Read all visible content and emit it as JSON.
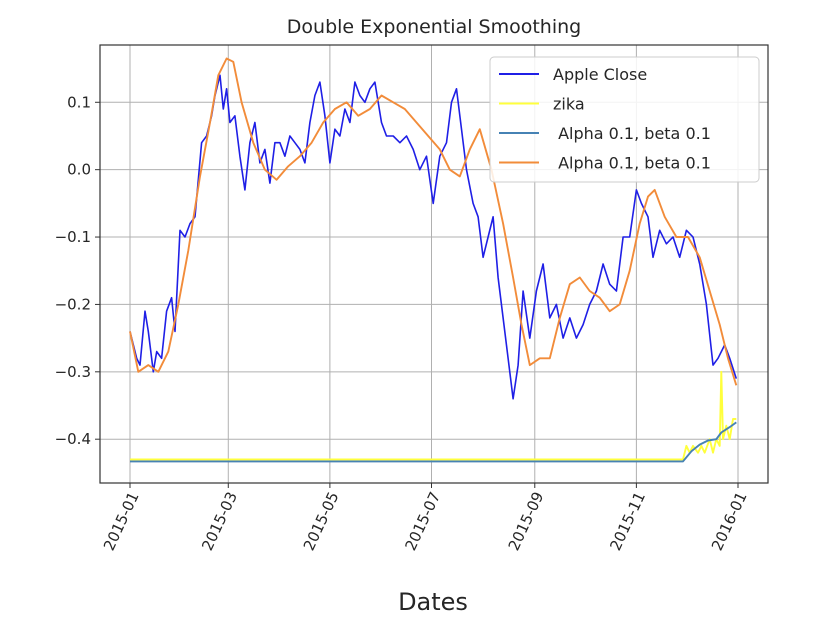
{
  "chart_data": {
    "type": "line",
    "title": "Double Exponential Smoothing",
    "xlabel": "Dates",
    "ylabel": "",
    "x_axis": {
      "kind": "date",
      "range": [
        "2015-01-01",
        "2016-01-01"
      ],
      "ticks": [
        "2015-01",
        "2015-03",
        "2015-05",
        "2015-07",
        "2015-09",
        "2015-11",
        "2016-01"
      ],
      "tick_rotation": -65
    },
    "y_axis": {
      "range": [
        -0.465,
        0.185
      ],
      "ticks": [
        0.1,
        0.0,
        -0.1,
        -0.2,
        -0.3,
        -0.4
      ],
      "tick_labels": [
        "0.1",
        "0.0",
        "−0.1",
        "−0.2",
        "−0.3",
        "−0.4"
      ]
    },
    "grid": true,
    "legend_position": "top-right",
    "series": [
      {
        "name": "Apple Close",
        "color": "#1f1fe6",
        "x": [
          "2015-01-01",
          "2015-01-05",
          "2015-01-07",
          "2015-01-10",
          "2015-01-12",
          "2015-01-15",
          "2015-01-17",
          "2015-01-20",
          "2015-01-23",
          "2015-01-26",
          "2015-01-28",
          "2015-01-31",
          "2015-02-03",
          "2015-02-06",
          "2015-02-09",
          "2015-02-13",
          "2015-02-16",
          "2015-02-19",
          "2015-02-21",
          "2015-02-24",
          "2015-02-26",
          "2015-02-28",
          "2015-03-02",
          "2015-03-05",
          "2015-03-08",
          "2015-03-11",
          "2015-03-14",
          "2015-03-17",
          "2015-03-20",
          "2015-03-23",
          "2015-03-26",
          "2015-03-29",
          "2015-04-01",
          "2015-04-04",
          "2015-04-07",
          "2015-04-10",
          "2015-04-13",
          "2015-04-16",
          "2015-04-19",
          "2015-04-22",
          "2015-04-25",
          "2015-04-28",
          "2015-05-01",
          "2015-05-04",
          "2015-05-07",
          "2015-05-10",
          "2015-05-13",
          "2015-05-16",
          "2015-05-19",
          "2015-05-22",
          "2015-05-25",
          "2015-05-28",
          "2015-06-01",
          "2015-06-04",
          "2015-06-08",
          "2015-06-12",
          "2015-06-16",
          "2015-06-20",
          "2015-06-24",
          "2015-06-28",
          "2015-07-02",
          "2015-07-06",
          "2015-07-10",
          "2015-07-13",
          "2015-07-16",
          "2015-07-19",
          "2015-07-22",
          "2015-07-26",
          "2015-07-29",
          "2015-08-01",
          "2015-08-04",
          "2015-08-07",
          "2015-08-10",
          "2015-08-13",
          "2015-08-16",
          "2015-08-19",
          "2015-08-22",
          "2015-08-25",
          "2015-08-29",
          "2015-09-02",
          "2015-09-06",
          "2015-09-10",
          "2015-09-14",
          "2015-09-18",
          "2015-09-22",
          "2015-09-26",
          "2015-09-30",
          "2015-10-04",
          "2015-10-08",
          "2015-10-12",
          "2015-10-16",
          "2015-10-20",
          "2015-10-24",
          "2015-10-28",
          "2015-11-01",
          "2015-11-04",
          "2015-11-08",
          "2015-11-11",
          "2015-11-15",
          "2015-11-19",
          "2015-11-23",
          "2015-11-27",
          "2015-12-01",
          "2015-12-05",
          "2015-12-09",
          "2015-12-13",
          "2015-12-17",
          "2015-12-20",
          "2015-12-24",
          "2015-12-27",
          "2015-12-31"
        ],
        "y": [
          -0.24,
          -0.28,
          -0.29,
          -0.21,
          -0.24,
          -0.3,
          -0.27,
          -0.28,
          -0.21,
          -0.19,
          -0.24,
          -0.09,
          -0.1,
          -0.08,
          -0.07,
          0.04,
          0.05,
          0.08,
          0.11,
          0.14,
          0.09,
          0.12,
          0.07,
          0.08,
          0.02,
          -0.03,
          0.04,
          0.07,
          0.01,
          0.03,
          -0.02,
          0.04,
          0.04,
          0.02,
          0.05,
          0.04,
          0.03,
          0.01,
          0.07,
          0.11,
          0.13,
          0.08,
          0.01,
          0.06,
          0.05,
          0.09,
          0.07,
          0.13,
          0.11,
          0.1,
          0.12,
          0.13,
          0.07,
          0.05,
          0.05,
          0.04,
          0.05,
          0.03,
          0.0,
          0.02,
          -0.05,
          0.02,
          0.04,
          0.1,
          0.12,
          0.06,
          0.0,
          -0.05,
          -0.07,
          -0.13,
          -0.1,
          -0.07,
          -0.16,
          -0.22,
          -0.28,
          -0.34,
          -0.29,
          -0.18,
          -0.25,
          -0.18,
          -0.14,
          -0.22,
          -0.2,
          -0.25,
          -0.22,
          -0.25,
          -0.23,
          -0.2,
          -0.18,
          -0.14,
          -0.17,
          -0.18,
          -0.1,
          -0.1,
          -0.03,
          -0.05,
          -0.07,
          -0.13,
          -0.09,
          -0.11,
          -0.1,
          -0.13,
          -0.09,
          -0.1,
          -0.14,
          -0.2,
          -0.29,
          -0.28,
          -0.26,
          -0.28,
          -0.31
        ]
      },
      {
        "name": "zika",
        "color": "#ffff3c",
        "x": [
          "2015-01-01",
          "2015-11-29",
          "2015-12-01",
          "2015-12-03",
          "2015-12-05",
          "2015-12-08",
          "2015-12-10",
          "2015-12-12",
          "2015-12-15",
          "2015-12-17",
          "2015-12-19",
          "2015-12-21",
          "2015-12-22",
          "2015-12-23",
          "2015-12-25",
          "2015-12-27",
          "2015-12-29",
          "2015-12-31"
        ],
        "y": [
          -0.43,
          -0.43,
          -0.41,
          -0.42,
          -0.41,
          -0.42,
          -0.41,
          -0.42,
          -0.4,
          -0.42,
          -0.4,
          -0.41,
          -0.3,
          -0.4,
          -0.38,
          -0.4,
          -0.37,
          -0.37
        ]
      },
      {
        "name": " Alpha 0.1, beta 0.1",
        "color": "#4682b4",
        "x": [
          "2015-01-01",
          "2015-11-29",
          "2015-12-04",
          "2015-12-09",
          "2015-12-14",
          "2015-12-19",
          "2015-12-22",
          "2015-12-27",
          "2015-12-31"
        ],
        "y": [
          -0.433,
          -0.433,
          -0.418,
          -0.408,
          -0.402,
          -0.4,
          -0.39,
          -0.382,
          -0.375
        ]
      },
      {
        "name": " Alpha 0.1, beta 0.1",
        "color": "#f28c3a",
        "x": [
          "2015-01-01",
          "2015-01-06",
          "2015-01-12",
          "2015-01-18",
          "2015-01-24",
          "2015-01-30",
          "2015-02-05",
          "2015-02-12",
          "2015-02-18",
          "2015-02-23",
          "2015-02-28",
          "2015-03-04",
          "2015-03-09",
          "2015-03-16",
          "2015-03-23",
          "2015-03-30",
          "2015-04-06",
          "2015-04-13",
          "2015-04-20",
          "2015-04-27",
          "2015-05-04",
          "2015-05-11",
          "2015-05-18",
          "2015-05-25",
          "2015-06-01",
          "2015-06-08",
          "2015-06-15",
          "2015-06-22",
          "2015-06-29",
          "2015-07-06",
          "2015-07-12",
          "2015-07-18",
          "2015-07-24",
          "2015-07-30",
          "2015-08-06",
          "2015-08-13",
          "2015-08-19",
          "2015-08-24",
          "2015-08-29",
          "2015-09-04",
          "2015-09-10",
          "2015-09-16",
          "2015-09-22",
          "2015-09-28",
          "2015-10-04",
          "2015-10-10",
          "2015-10-16",
          "2015-10-22",
          "2015-10-28",
          "2015-11-03",
          "2015-11-08",
          "2015-11-12",
          "2015-11-18",
          "2015-11-25",
          "2015-12-02",
          "2015-12-09",
          "2015-12-15",
          "2015-12-21",
          "2015-12-26",
          "2015-12-31"
        ],
        "y": [
          -0.24,
          -0.3,
          -0.29,
          -0.3,
          -0.27,
          -0.2,
          -0.12,
          -0.01,
          0.07,
          0.14,
          0.165,
          0.16,
          0.1,
          0.04,
          0.0,
          -0.015,
          0.005,
          0.02,
          0.04,
          0.07,
          0.09,
          0.1,
          0.08,
          0.09,
          0.11,
          0.1,
          0.09,
          0.07,
          0.05,
          0.03,
          0.0,
          -0.01,
          0.03,
          0.06,
          0.0,
          -0.08,
          -0.16,
          -0.23,
          -0.29,
          -0.28,
          -0.28,
          -0.22,
          -0.17,
          -0.16,
          -0.18,
          -0.19,
          -0.21,
          -0.2,
          -0.15,
          -0.08,
          -0.04,
          -0.03,
          -0.07,
          -0.1,
          -0.1,
          -0.13,
          -0.18,
          -0.23,
          -0.28,
          -0.32
        ]
      }
    ]
  }
}
